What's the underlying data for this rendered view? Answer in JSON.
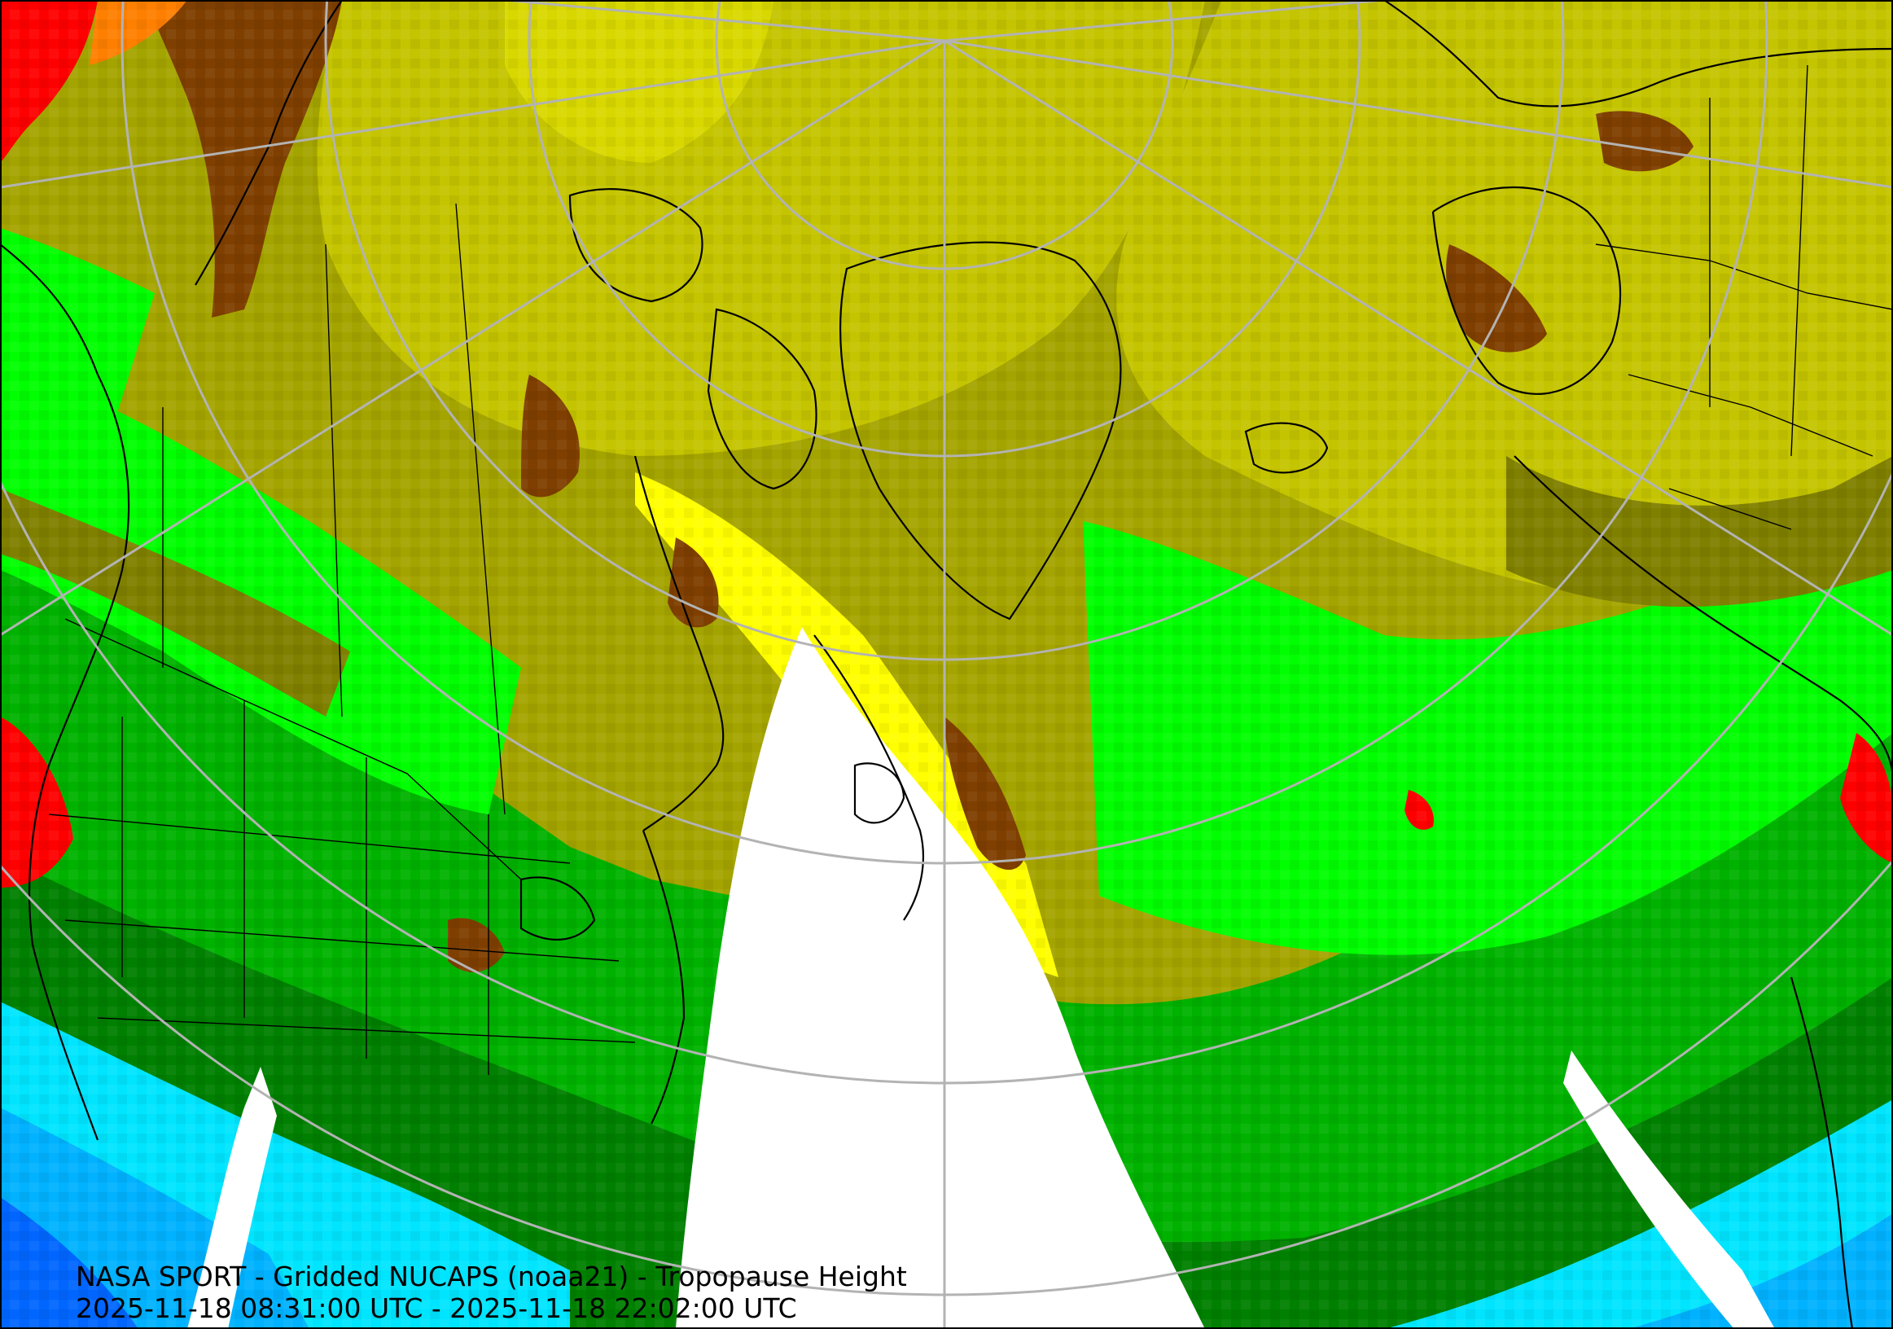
{
  "caption": {
    "title": "NASA SPORT - Gridded NUCAPS (noaa21) - Tropopause Height",
    "time_range": "2025-11-18 08:31:00 UTC - 2025-11-18 22:02:00 UTC"
  },
  "palette": {
    "red": "#ff0000",
    "orange": "#ff7f00",
    "brown": "#7f3f00",
    "olive_dark": "#7f7f00",
    "olive": "#a4a400",
    "olive_light": "#c4c400",
    "yellow": "#ffff00",
    "green_bright": "#00ff00",
    "green": "#00b200",
    "green_dark": "#008000",
    "cyan": "#00e5ff",
    "sky": "#00b2ff",
    "blue": "#0066ff",
    "nodata": "#ffffff",
    "coastline": "#000000",
    "graticule": "#b3b3b3"
  }
}
